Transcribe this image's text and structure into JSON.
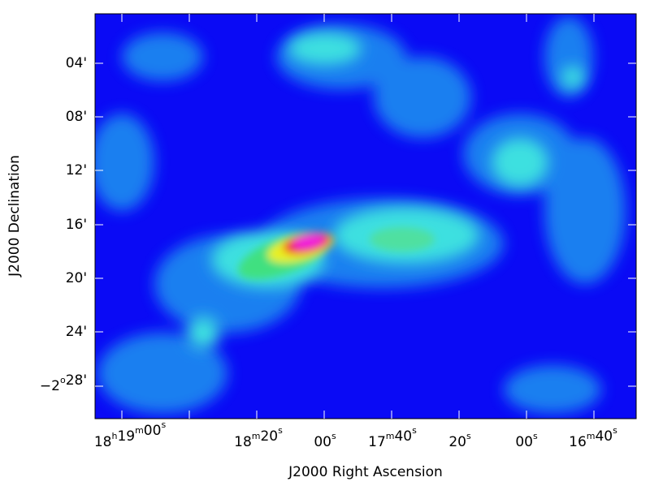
{
  "x_axis": {
    "title": "J2000 Right Ascension",
    "ticks": [
      "18h19m00s",
      "18m20s",
      "00s",
      "17m40s",
      "20s",
      "00s",
      "16m40s"
    ]
  },
  "y_axis": {
    "title": "J2000 Declination",
    "ticks": [
      "04'",
      "08'",
      "12'",
      "16'",
      "20'",
      "24'",
      "−2o28'"
    ]
  }
}
